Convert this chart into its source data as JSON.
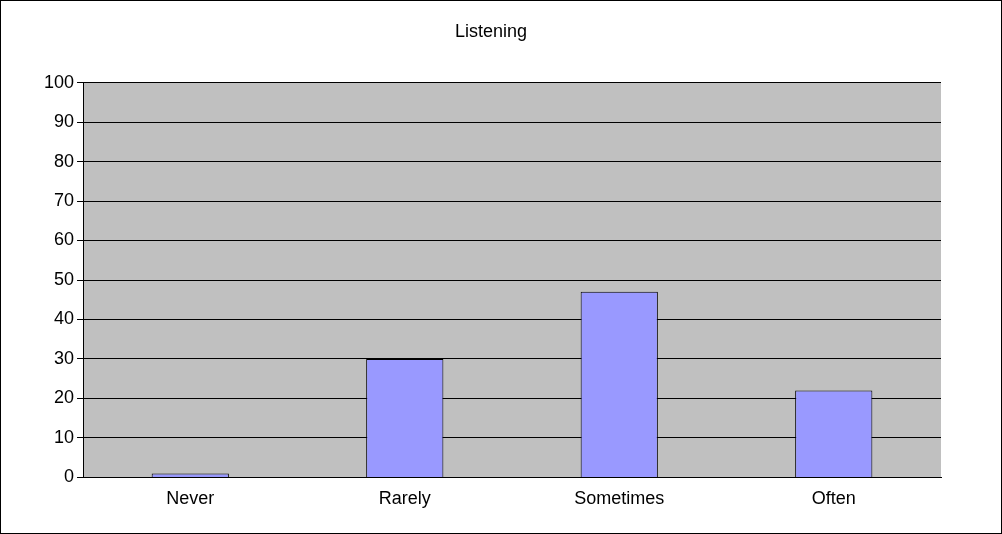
{
  "chart_data": {
    "type": "bar",
    "title": "Listening",
    "categories": [
      "Never",
      "Rarely",
      "Sometimes",
      "Often"
    ],
    "values": [
      1,
      30,
      47,
      22
    ],
    "color": "#9999ff",
    "ylim": [
      0,
      100
    ],
    "yticks": [
      0,
      10,
      20,
      30,
      40,
      50,
      60,
      70,
      80,
      90,
      100
    ],
    "grid": "y"
  }
}
